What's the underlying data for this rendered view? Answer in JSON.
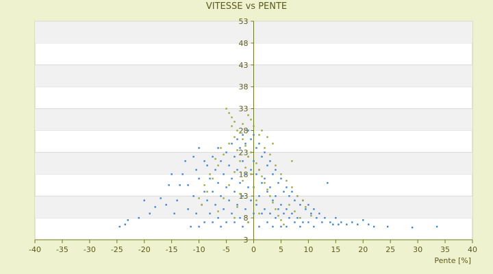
{
  "chart_data": {
    "type": "scatter",
    "title": "VITESSE vs PENTE",
    "xlabel": "Pente [%]",
    "ylabel": "",
    "xlim": [
      -40,
      40
    ],
    "ylim": [
      3,
      53
    ],
    "x_ticks": [
      "-40",
      "-35",
      "-30",
      "-25",
      "-20",
      "-15",
      "-10",
      "-5",
      "0",
      "5",
      "10",
      "15",
      "20",
      "25",
      "30",
      "35",
      "40"
    ],
    "y_ticks": [
      "53",
      "48",
      "43",
      "38",
      "33",
      "28",
      "23",
      "18",
      "13",
      "8",
      "3"
    ],
    "grid": "horizontal alternating bands",
    "legend": "none",
    "series": [
      {
        "color": "#2e86de",
        "points": [
          [
            -24.5,
            6
          ],
          [
            -23.5,
            6.5
          ],
          [
            -23,
            7.5
          ],
          [
            -21,
            8
          ],
          [
            -20,
            12
          ],
          [
            -19,
            9
          ],
          [
            -18,
            10.5
          ],
          [
            -17,
            12.5
          ],
          [
            -16,
            11
          ],
          [
            -15.5,
            15.5
          ],
          [
            -15,
            18
          ],
          [
            -14.5,
            9
          ],
          [
            -14,
            12
          ],
          [
            -13.5,
            15.5
          ],
          [
            -13,
            18
          ],
          [
            -12.5,
            21
          ],
          [
            -12,
            15.5
          ],
          [
            -12,
            10
          ],
          [
            -11.5,
            6
          ],
          [
            -11,
            22
          ],
          [
            -11,
            13
          ],
          [
            -10.5,
            19
          ],
          [
            -10.5,
            9
          ],
          [
            -10,
            24
          ],
          [
            -10,
            17
          ],
          [
            -10,
            6
          ],
          [
            -9.5,
            11
          ],
          [
            -9,
            21
          ],
          [
            -9,
            14
          ],
          [
            -9,
            7
          ],
          [
            -8.5,
            20
          ],
          [
            -8.5,
            12
          ],
          [
            -8,
            17
          ],
          [
            -8,
            9
          ],
          [
            -7.5,
            22
          ],
          [
            -7.5,
            14
          ],
          [
            -7.5,
            7
          ],
          [
            -7,
            19
          ],
          [
            -7,
            11
          ],
          [
            -6.5,
            24
          ],
          [
            -6.5,
            16
          ],
          [
            -6.5,
            8
          ],
          [
            -6,
            21
          ],
          [
            -6,
            13
          ],
          [
            -6,
            6
          ],
          [
            -5.5,
            18
          ],
          [
            -5.5,
            10
          ],
          [
            -5,
            23
          ],
          [
            -5,
            15
          ],
          [
            -5,
            7
          ],
          [
            -4.5,
            20
          ],
          [
            -4.5,
            12
          ],
          [
            -4,
            25
          ],
          [
            -4,
            17
          ],
          [
            -4,
            9
          ],
          [
            -3.5,
            22
          ],
          [
            -3.5,
            14
          ],
          [
            -3.5,
            7
          ],
          [
            -3,
            26
          ],
          [
            -3,
            19
          ],
          [
            -3,
            11
          ],
          [
            -2.5,
            24
          ],
          [
            -2.5,
            16
          ],
          [
            -2.5,
            8
          ],
          [
            -2,
            27
          ],
          [
            -2,
            21
          ],
          [
            -2,
            13
          ],
          [
            -2,
            6
          ],
          [
            -1.5,
            25
          ],
          [
            -1.5,
            18
          ],
          [
            -1.5,
            10
          ],
          [
            -1,
            28
          ],
          [
            -1,
            22
          ],
          [
            -1,
            15
          ],
          [
            -1,
            7
          ],
          [
            -0.5,
            26
          ],
          [
            -0.5,
            19
          ],
          [
            -0.5,
            12
          ],
          [
            0,
            27
          ],
          [
            0,
            21
          ],
          [
            0,
            15
          ],
          [
            0,
            9
          ],
          [
            0.5,
            24
          ],
          [
            0.5,
            18
          ],
          [
            0.5,
            11
          ],
          [
            1,
            25
          ],
          [
            1,
            19
          ],
          [
            1,
            13
          ],
          [
            1,
            6
          ],
          [
            1.5,
            22
          ],
          [
            1.5,
            16
          ],
          [
            1.5,
            9
          ],
          [
            2,
            23
          ],
          [
            2,
            17
          ],
          [
            2,
            10
          ],
          [
            2.5,
            20
          ],
          [
            2.5,
            14
          ],
          [
            2.5,
            7
          ],
          [
            3,
            21
          ],
          [
            3,
            15
          ],
          [
            3,
            9
          ],
          [
            3.5,
            18
          ],
          [
            3.5,
            12
          ],
          [
            3.5,
            6
          ],
          [
            4,
            19
          ],
          [
            4,
            13
          ],
          [
            4,
            8
          ],
          [
            4.5,
            16
          ],
          [
            4.5,
            10
          ],
          [
            5,
            17
          ],
          [
            5,
            11
          ],
          [
            5,
            6
          ],
          [
            5.5,
            14
          ],
          [
            5.5,
            9
          ],
          [
            6,
            15
          ],
          [
            6,
            10
          ],
          [
            6,
            6
          ],
          [
            6.5,
            13
          ],
          [
            6.5,
            8
          ],
          [
            7,
            14
          ],
          [
            7,
            9
          ],
          [
            7.5,
            12
          ],
          [
            7.5,
            7
          ],
          [
            8,
            13
          ],
          [
            8,
            8
          ],
          [
            8.5,
            11
          ],
          [
            8.5,
            6
          ],
          [
            9,
            12
          ],
          [
            9,
            7
          ],
          [
            9.5,
            10
          ],
          [
            10,
            11
          ],
          [
            10,
            7
          ],
          [
            10.5,
            9
          ],
          [
            11,
            10
          ],
          [
            11,
            6
          ],
          [
            11.5,
            8
          ],
          [
            12,
            9
          ],
          [
            12.5,
            7
          ],
          [
            13,
            8
          ],
          [
            13.5,
            16
          ],
          [
            14,
            7
          ],
          [
            14.5,
            6.5
          ],
          [
            15,
            8
          ],
          [
            15.5,
            6.5
          ],
          [
            16,
            7
          ],
          [
            17,
            6.5
          ],
          [
            18,
            7
          ],
          [
            19,
            6.5
          ],
          [
            20,
            7.5
          ],
          [
            21,
            6.5
          ],
          [
            22,
            6
          ],
          [
            24.5,
            6
          ],
          [
            29,
            5.8
          ],
          [
            33.5,
            6
          ]
        ]
      },
      {
        "color": "#9aa82a",
        "points": [
          [
            -5,
            33
          ],
          [
            -4.5,
            32
          ],
          [
            -4,
            31
          ],
          [
            -3.5,
            30
          ],
          [
            -4,
            29
          ],
          [
            -3,
            28
          ],
          [
            -2.5,
            27.5
          ],
          [
            -3.5,
            26.5
          ],
          [
            -2,
            26
          ],
          [
            -4.5,
            25
          ],
          [
            -1.5,
            24.5
          ],
          [
            -3,
            23.5
          ],
          [
            -0.5,
            23
          ],
          [
            -5.5,
            22.5
          ],
          [
            -1,
            22
          ],
          [
            -2.5,
            21
          ],
          [
            0.5,
            20.5
          ],
          [
            -6.5,
            20
          ],
          [
            -1.5,
            19.5
          ],
          [
            1,
            19
          ],
          [
            -3.5,
            18.5
          ],
          [
            -0.5,
            18
          ],
          [
            1.5,
            17.5
          ],
          [
            -7.5,
            17
          ],
          [
            -2,
            16.5
          ],
          [
            2,
            16
          ],
          [
            -4.5,
            15.5
          ],
          [
            0,
            15
          ],
          [
            2.5,
            14.5
          ],
          [
            -8.5,
            14
          ],
          [
            -2.5,
            13.5
          ],
          [
            3,
            13
          ],
          [
            -5.5,
            12.5
          ],
          [
            0.5,
            12
          ],
          [
            3.5,
            11.5
          ],
          [
            -9.5,
            11
          ],
          [
            -3,
            10.5
          ],
          [
            4,
            10
          ],
          [
            -6.5,
            9.5
          ],
          [
            1,
            9
          ],
          [
            4.5,
            8.5
          ],
          [
            -3.5,
            8
          ],
          [
            5,
            7.5
          ],
          [
            -1,
            7
          ],
          [
            5.5,
            6.5
          ],
          [
            6.5,
            11
          ],
          [
            7.5,
            9.5
          ],
          [
            8.5,
            8
          ],
          [
            9.5,
            10.5
          ],
          [
            10.5,
            8.5
          ],
          [
            -1,
            31.5
          ],
          [
            0,
            29
          ],
          [
            -2,
            29.5
          ],
          [
            1,
            27
          ],
          [
            2,
            24
          ],
          [
            3,
            22.5
          ],
          [
            4,
            20
          ],
          [
            5,
            18
          ],
          [
            6,
            16.5
          ],
          [
            7,
            15
          ],
          [
            7,
            21
          ],
          [
            8,
            13
          ],
          [
            9,
            12
          ],
          [
            -6,
            24
          ],
          [
            -7,
            21.5
          ],
          [
            -8,
            18
          ],
          [
            -9,
            15.5
          ],
          [
            -10,
            12.5
          ],
          [
            3.5,
            25
          ],
          [
            2.5,
            26.5
          ],
          [
            1.5,
            28
          ],
          [
            -0.5,
            30.5
          ]
        ]
      }
    ]
  }
}
